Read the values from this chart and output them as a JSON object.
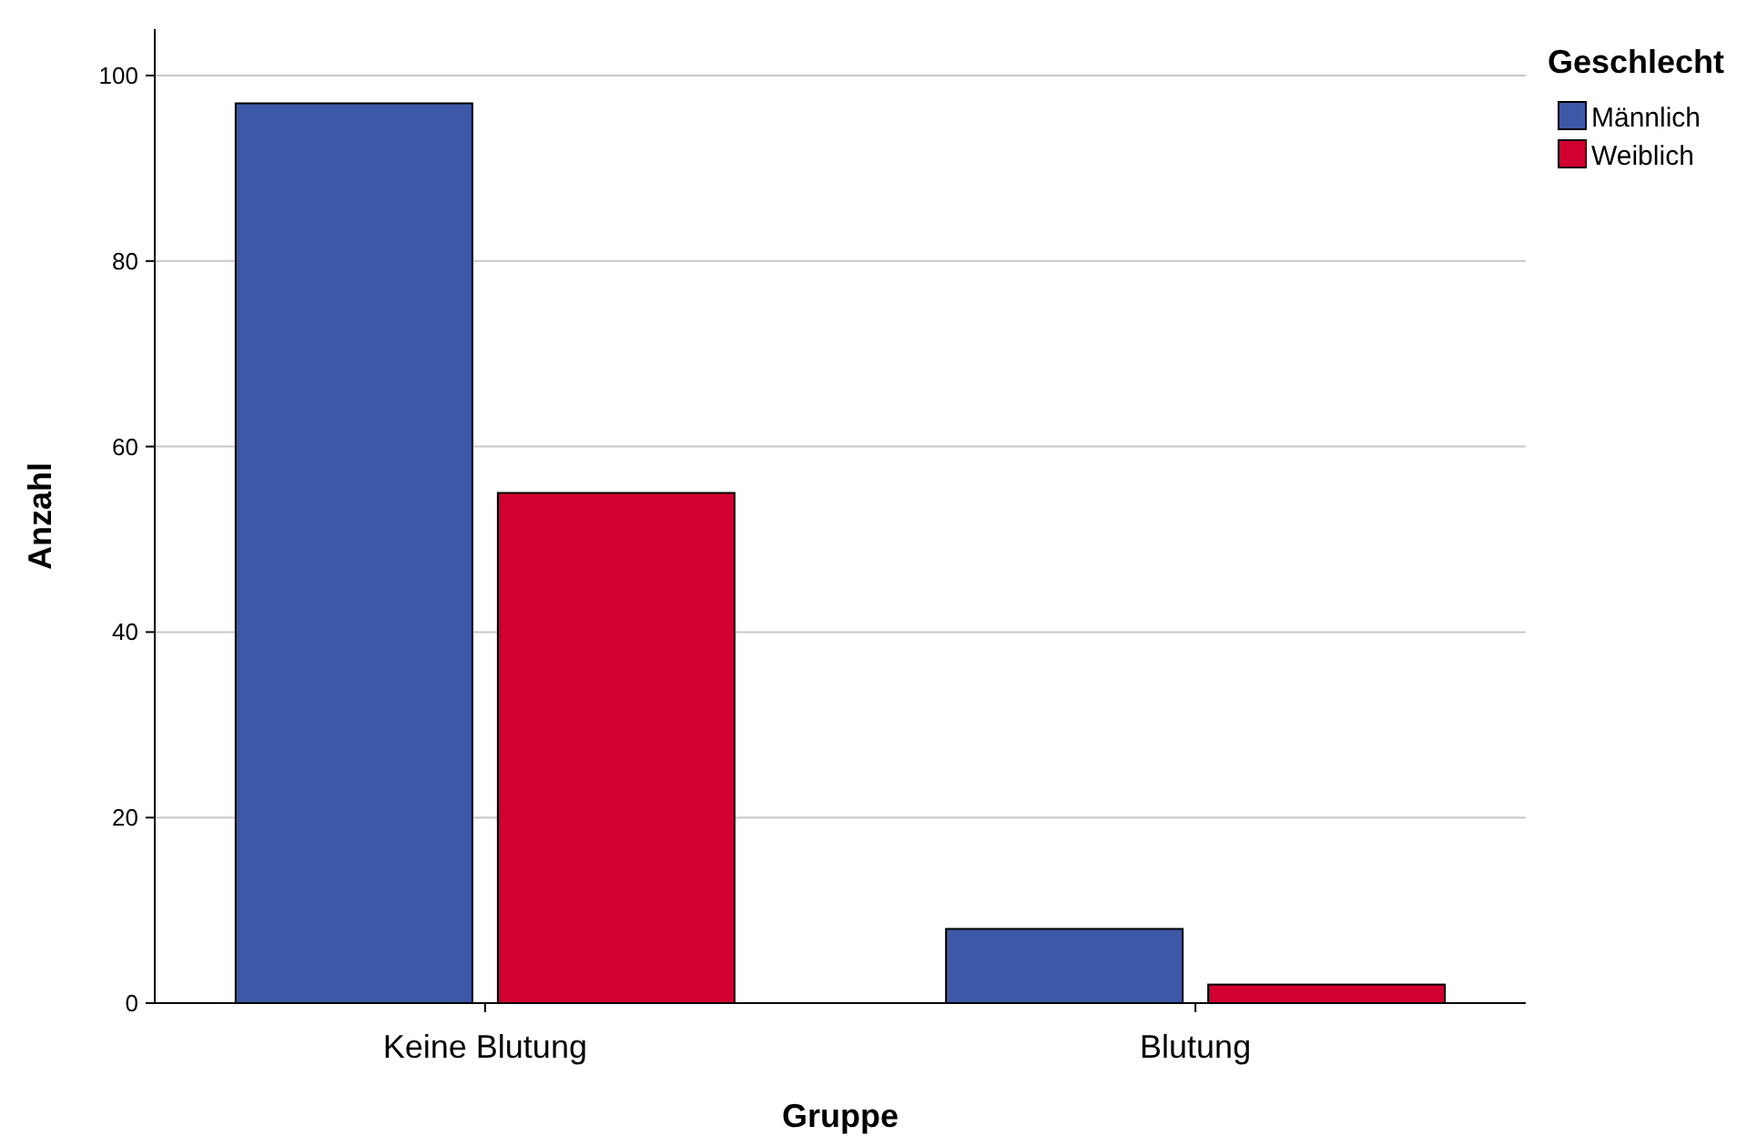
{
  "chart_data": {
    "type": "bar",
    "xlabel": "Gruppe",
    "ylabel": "Anzahl",
    "legend_title": "Geschlecht",
    "categories": [
      "Keine Blutung",
      "Blutung"
    ],
    "series": [
      {
        "name": "Männlich",
        "color": "#3e58a8",
        "values": [
          97,
          8
        ]
      },
      {
        "name": "Weiblich",
        "color": "#d20030",
        "values": [
          55,
          2
        ]
      }
    ],
    "ylim": [
      0,
      105
    ],
    "yticks": [
      0,
      20,
      40,
      60,
      80,
      100
    ],
    "grid": "y",
    "legend": "top right"
  }
}
